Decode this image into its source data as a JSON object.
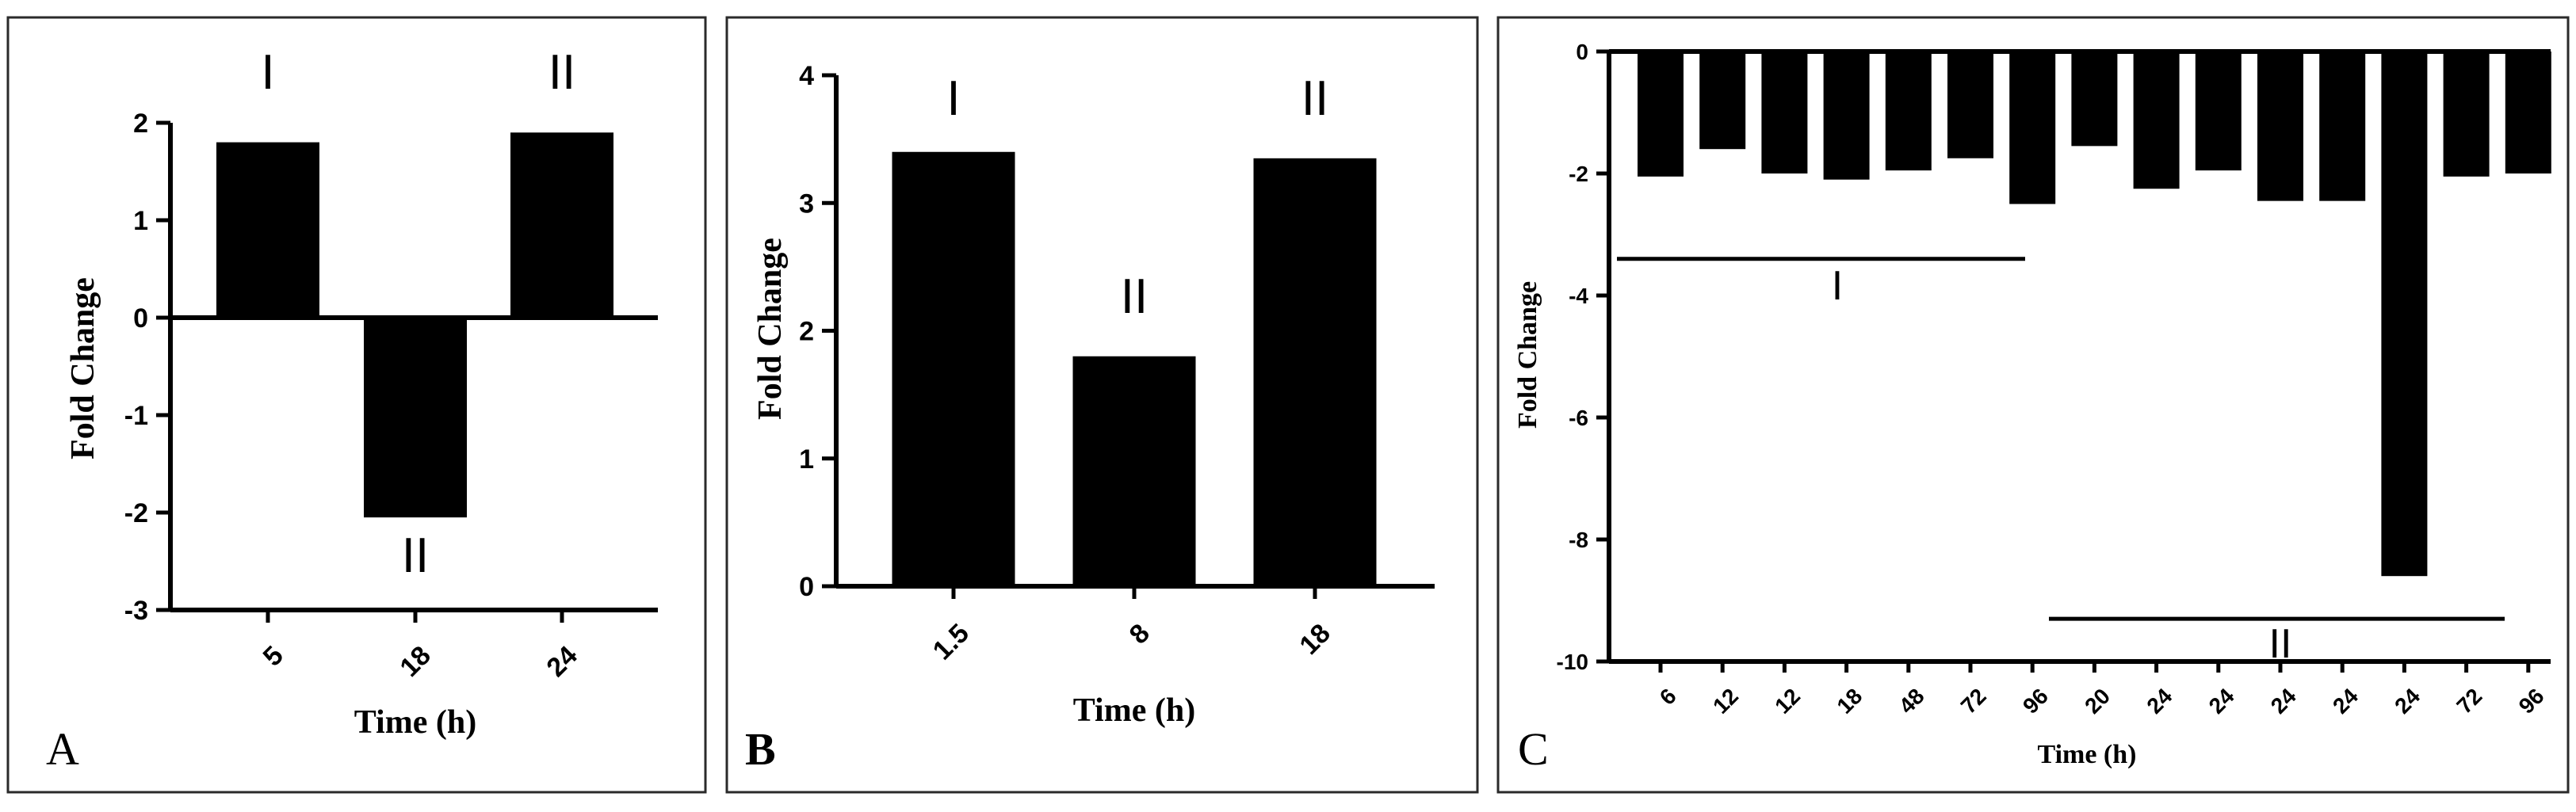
{
  "chart_data": [
    {
      "type": "bar",
      "panel": "A",
      "xlabel": "Time (h)",
      "ylabel": "Fold Change",
      "ylim": [
        -3,
        2
      ],
      "yticks": [
        "-3",
        "-2",
        "-1",
        "0",
        "1",
        "2"
      ],
      "categories": [
        "5",
        "18",
        "24"
      ],
      "values": [
        1.8,
        -2.05,
        1.9
      ],
      "annotations": [
        "I",
        "II",
        "II"
      ]
    },
    {
      "type": "bar",
      "panel": "B",
      "xlabel": "Time (h)",
      "ylabel": "Fold Change",
      "ylim": [
        0,
        4
      ],
      "yticks": [
        "0",
        "1",
        "2",
        "3",
        "4"
      ],
      "categories": [
        "1.5",
        "8",
        "18"
      ],
      "values": [
        3.4,
        1.8,
        3.35
      ],
      "annotations": [
        "I",
        "II",
        "II"
      ]
    },
    {
      "type": "bar",
      "panel": "C",
      "xlabel": "Time (h)",
      "ylabel": "Fold Change",
      "ylim": [
        -10,
        0
      ],
      "yticks": [
        "0",
        "-2",
        "-4",
        "-6",
        "-8",
        "-10"
      ],
      "categories": [
        "6",
        "12",
        "12",
        "18",
        "48",
        "72",
        "96",
        "20",
        "24",
        "24",
        "24",
        "24",
        "24",
        "72",
        "96"
      ],
      "values": [
        -2.05,
        -1.6,
        -2.0,
        -2.1,
        -1.95,
        -1.75,
        -2.5,
        -1.55,
        -2.25,
        -1.95,
        -2.45,
        -2.45,
        -8.6,
        -2.05,
        -2.0
      ],
      "groups": [
        {
          "label": "I",
          "from_index": 0,
          "to_index": 6,
          "y_value": -3.4
        },
        {
          "label": "II",
          "from_index": 7,
          "to_index": 14,
          "y_value": -9.3
        }
      ]
    }
  ]
}
